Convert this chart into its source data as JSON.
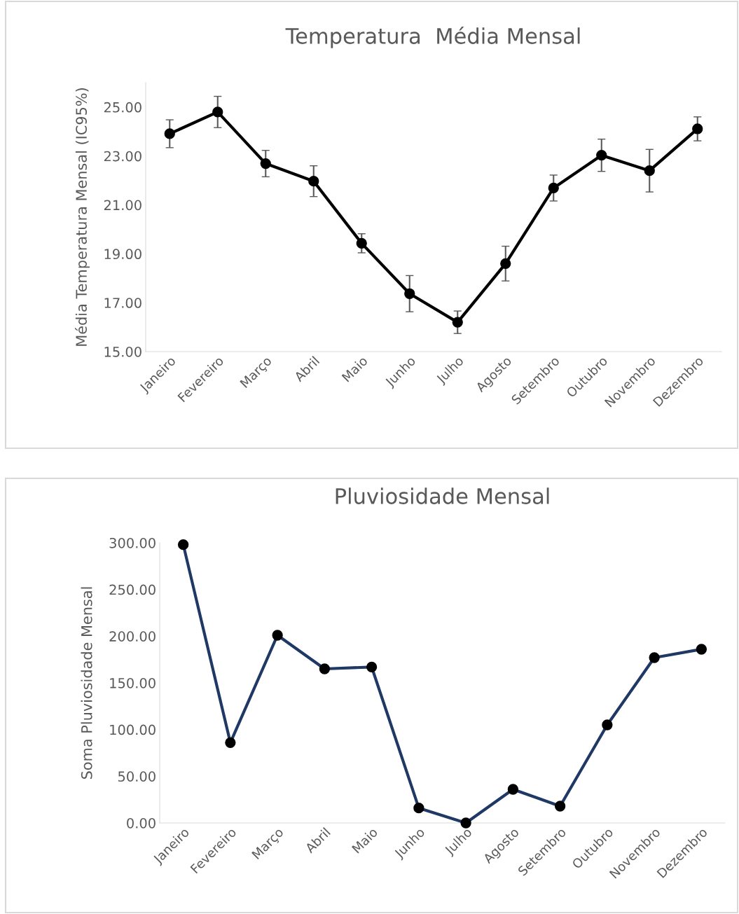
{
  "chart_data": [
    {
      "type": "line",
      "title": "Temperatura  Média Mensal",
      "ylabel": "Média Temperatura Mensal (IC95%)",
      "categories": [
        "Janeiro",
        "Fevereiro",
        "Março",
        "Abril",
        "Maio",
        "Junho",
        "Julho",
        "Agosto",
        "Setembro",
        "Outubro",
        "Novembro",
        "Dezembro"
      ],
      "series": [
        {
          "color": "#000000",
          "values": [
            23.91,
            24.8,
            22.69,
            21.97,
            19.43,
            17.37,
            16.2,
            18.6,
            21.69,
            23.03,
            22.4,
            24.11
          ],
          "errors": [
            0.57,
            0.64,
            0.54,
            0.63,
            0.39,
            0.74,
            0.46,
            0.71,
            0.53,
            0.66,
            0.87,
            0.49
          ]
        }
      ],
      "ylim": [
        15,
        26
      ],
      "yticks": [
        {
          "value": 15,
          "label": "15.00"
        },
        {
          "value": 17,
          "label": "17.00"
        },
        {
          "value": 19,
          "label": "19.00"
        },
        {
          "value": 21,
          "label": "21.00"
        },
        {
          "value": 23,
          "label": "23.00"
        },
        {
          "value": 25,
          "label": "25.00"
        }
      ],
      "marker": "circle",
      "line_style": "solid",
      "grid": false,
      "legend": false
    },
    {
      "type": "line",
      "title": "Pluviosidade Mensal",
      "ylabel": "Soma Pluviosidade Mensal",
      "categories": [
        "Janeiro",
        "Fevereiro",
        "Março",
        "Abril",
        "Maio",
        "Junho",
        "Julho",
        "Agosto",
        "Setembro",
        "Outubro",
        "Novembro",
        "Dezembro"
      ],
      "series": [
        {
          "color": "#1f3864",
          "values": [
            298,
            86,
            201,
            165,
            167,
            16,
            0,
            36,
            18,
            105,
            177,
            186
          ]
        }
      ],
      "ylim": [
        0,
        300
      ],
      "yticks": [
        {
          "value": 0,
          "label": "0.00"
        },
        {
          "value": 50,
          "label": "50.00"
        },
        {
          "value": 100,
          "label": "100.00"
        },
        {
          "value": 150,
          "label": "150.00"
        },
        {
          "value": 200,
          "label": "200.00"
        },
        {
          "value": 250,
          "label": "250.00"
        },
        {
          "value": 300,
          "label": "300.00"
        }
      ],
      "marker": "circle",
      "line_style": "solid",
      "grid": false,
      "legend": false
    }
  ]
}
